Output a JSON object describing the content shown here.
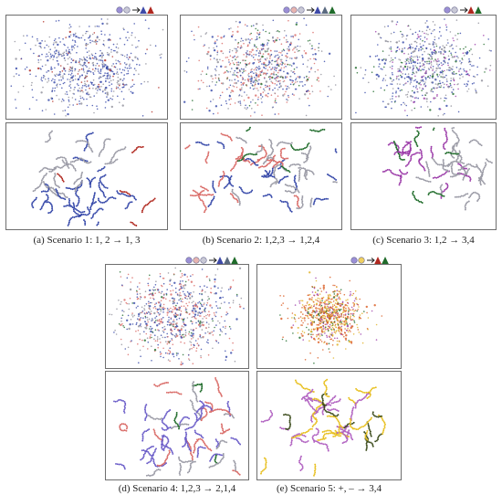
{
  "figure": {
    "scenarios": [
      {
        "id": "a",
        "caption": "(a) Scenario 1: 1, 2 → 1, 3",
        "legend": {
          "in": [
            "#9b8fd6",
            "#c9c9d6"
          ],
          "out": [
            "#3e4aa8",
            "#b0281f"
          ]
        },
        "tsne_top": {
          "n": 720,
          "spread": 0.36,
          "colors": [
            "#3346a8",
            "#8d8d99",
            "#b0281f"
          ],
          "weights": [
            0.55,
            0.35,
            0.1
          ]
        },
        "tsne_bottom": {
          "n": 520,
          "colors": [
            "#3346a8",
            "#9a9aa5",
            "#b0281f"
          ],
          "weights": [
            0.5,
            0.42,
            0.08
          ]
        }
      },
      {
        "id": "b",
        "caption": "(b) Scenario 2: 1,2,3 → 1,2,4",
        "legend": {
          "in": [
            "#9b8fd6",
            "#e8b5b0",
            "#c9c9d6"
          ],
          "out": [
            "#3e4aa8",
            "#5a6a80",
            "#1f6b2a"
          ]
        },
        "tsne_top": {
          "n": 800,
          "spread": 0.36,
          "colors": [
            "#3346a8",
            "#d96a66",
            "#8d8d99",
            "#1f6b2a"
          ],
          "weights": [
            0.38,
            0.32,
            0.22,
            0.08
          ]
        },
        "tsne_bottom": {
          "n": 600,
          "colors": [
            "#3346a8",
            "#d96a66",
            "#9a9aa5",
            "#1f6b2a"
          ],
          "weights": [
            0.36,
            0.32,
            0.24,
            0.08
          ]
        }
      },
      {
        "id": "c",
        "caption": "(c)  Scenario 3: 1,2 → 3,4",
        "legend": {
          "in": [
            "#9b8fd6",
            "#c9c9d6"
          ],
          "out": [
            "#b0281f",
            "#1f6b2a"
          ]
        },
        "tsne_top": {
          "n": 700,
          "spread": 0.36,
          "colors": [
            "#3346a8",
            "#8d8d99",
            "#1f6b2a",
            "#9b3aa8"
          ],
          "weights": [
            0.42,
            0.36,
            0.1,
            0.12
          ]
        },
        "tsne_bottom": {
          "n": 480,
          "colors": [
            "#9b3aa8",
            "#9a9aa5",
            "#1f6b2a"
          ],
          "weights": [
            0.38,
            0.5,
            0.12
          ]
        }
      },
      {
        "id": "d",
        "caption": "(d) Scenario 4: 1,2,3 → 2,1,4",
        "legend": {
          "in": [
            "#9b8fd6",
            "#e8b5b0",
            "#c9c9d6"
          ],
          "out": [
            "#3e4aa8",
            "#5a6a80",
            "#1f6b2a"
          ]
        },
        "tsne_top": {
          "n": 800,
          "spread": 0.36,
          "colors": [
            "#3346a8",
            "#d96a66",
            "#8d8d99",
            "#1f6b2a"
          ],
          "weights": [
            0.36,
            0.34,
            0.22,
            0.08
          ]
        },
        "tsne_bottom": {
          "n": 600,
          "colors": [
            "#6a5cc8",
            "#d96a66",
            "#9a9aa5",
            "#1f6b2a"
          ],
          "weights": [
            0.38,
            0.34,
            0.2,
            0.08
          ]
        }
      },
      {
        "id": "e",
        "caption": "(e) Scenario 5: +, – → 3,4",
        "legend": {
          "in": [
            "#9b8fd6",
            "#f0d060"
          ],
          "out": [
            "#b0281f",
            "#1f6b2a"
          ]
        },
        "tsne_top": {
          "n": 720,
          "spread": 0.22,
          "colors": [
            "#d95a1f",
            "#e0b020",
            "#9b3aa8",
            "#1f6b2a"
          ],
          "weights": [
            0.42,
            0.3,
            0.16,
            0.12
          ]
        },
        "tsne_bottom": {
          "n": 560,
          "colors": [
            "#b060c0",
            "#e8c020",
            "#3a4a1a"
          ],
          "weights": [
            0.42,
            0.42,
            0.16
          ]
        }
      }
    ]
  },
  "chart_data": [
    {
      "type": "scatter",
      "title": "(a) Scenario 1: 1, 2 → 1, 3",
      "xlabel": "",
      "ylabel": "",
      "grid": false,
      "series": []
    },
    {
      "type": "scatter",
      "title": "(b) Scenario 2: 1,2,3 → 1,2,4",
      "xlabel": "",
      "ylabel": "",
      "grid": false,
      "series": []
    },
    {
      "type": "scatter",
      "title": "(c)  Scenario 3: 1,2 → 3,4",
      "xlabel": "",
      "ylabel": "",
      "grid": false,
      "series": []
    },
    {
      "type": "scatter",
      "title": "(d) Scenario 4: 1,2,3 → 2,1,4",
      "xlabel": "",
      "ylabel": "",
      "grid": false,
      "series": []
    },
    {
      "type": "scatter",
      "title": "(e) Scenario 5: +, – → 3,4",
      "xlabel": "",
      "ylabel": "",
      "grid": false,
      "series": []
    }
  ]
}
